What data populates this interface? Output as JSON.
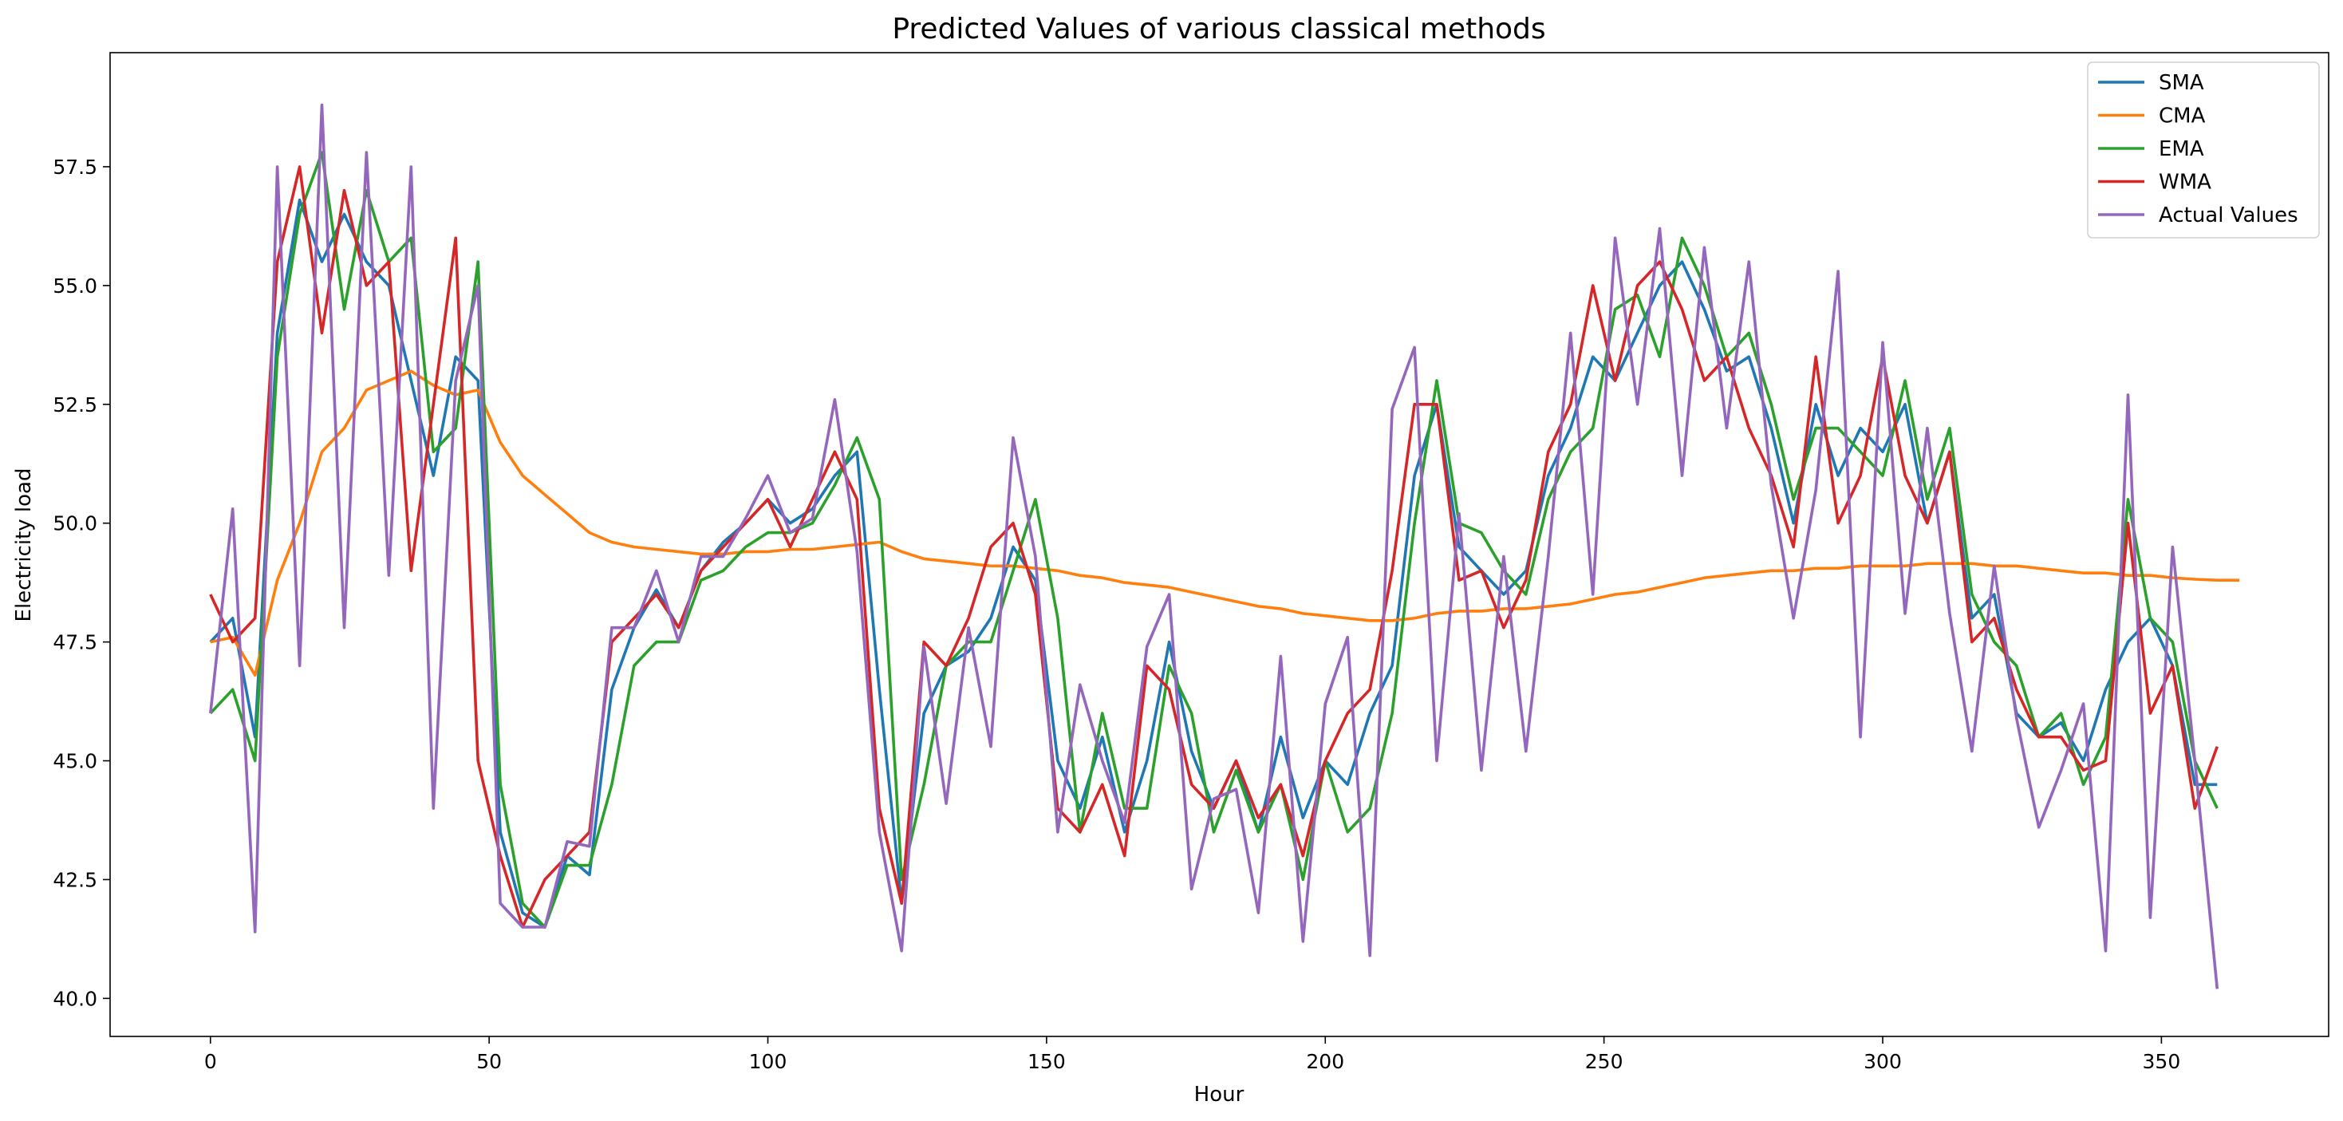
{
  "chart_data": {
    "type": "line",
    "title": "Predicted Values of various classical methods",
    "xlabel": "Hour",
    "ylabel": "Electricity load",
    "xlim": [
      -18,
      380
    ],
    "ylim": [
      39.2,
      59.9
    ],
    "xticks": [
      0,
      50,
      100,
      150,
      200,
      250,
      300,
      350
    ],
    "yticks": [
      40.0,
      42.5,
      45.0,
      47.5,
      50.0,
      52.5,
      55.0,
      57.5
    ],
    "ytick_labels": [
      "40.0",
      "42.5",
      "45.0",
      "47.5",
      "50.0",
      "52.5",
      "55.0",
      "57.5"
    ],
    "grid": false,
    "legend_position": "top-right",
    "sampling_note": "x values at every 4 hours (0..360); CMA last point at 364",
    "x": [
      0,
      4,
      8,
      12,
      16,
      20,
      24,
      28,
      32,
      36,
      40,
      44,
      48,
      52,
      56,
      60,
      64,
      68,
      72,
      76,
      80,
      84,
      88,
      92,
      96,
      100,
      104,
      108,
      112,
      116,
      120,
      124,
      128,
      132,
      136,
      140,
      144,
      148,
      152,
      156,
      160,
      164,
      168,
      172,
      176,
      180,
      184,
      188,
      192,
      196,
      200,
      204,
      208,
      212,
      216,
      220,
      224,
      228,
      232,
      236,
      240,
      244,
      248,
      252,
      256,
      260,
      264,
      268,
      272,
      276,
      280,
      284,
      288,
      292,
      296,
      300,
      304,
      308,
      312,
      316,
      320,
      324,
      328,
      332,
      336,
      340,
      344,
      348,
      352,
      356,
      360
    ],
    "series": [
      {
        "name": "SMA",
        "color": "#1f77b4",
        "values": [
          47.5,
          48.0,
          45.5,
          54.0,
          56.8,
          55.5,
          56.5,
          55.5,
          55.0,
          53.0,
          51.0,
          53.5,
          53.0,
          43.5,
          41.8,
          41.5,
          43.0,
          42.6,
          46.5,
          47.8,
          48.6,
          47.8,
          49.0,
          49.6,
          50.0,
          50.5,
          50.0,
          50.3,
          51.0,
          51.5,
          46.5,
          42.0,
          46.0,
          47.0,
          47.3,
          48.0,
          49.5,
          48.8,
          45.0,
          44.0,
          45.5,
          43.5,
          45.0,
          47.5,
          45.2,
          44.0,
          45.0,
          43.5,
          45.5,
          43.8,
          45.0,
          44.5,
          46.0,
          47.0,
          51.0,
          52.5,
          49.5,
          49.0,
          48.5,
          49.0,
          51.0,
          52.0,
          53.5,
          53.0,
          54.0,
          55.0,
          55.5,
          54.5,
          53.2,
          53.5,
          52.0,
          50.0,
          52.5,
          51.0,
          52.0,
          51.5,
          52.5,
          50.0,
          51.5,
          48.0,
          48.5,
          46.0,
          45.5,
          45.8,
          45.0,
          46.5,
          47.5,
          48.0,
          47.0,
          44.5,
          44.5
        ]
      },
      {
        "name": "CMA",
        "color": "#ff7f0e",
        "values": [
          47.5,
          47.6,
          46.8,
          48.8,
          50.0,
          51.5,
          52.0,
          52.8,
          53.0,
          53.2,
          52.9,
          52.7,
          52.8,
          51.7,
          51.0,
          50.6,
          50.2,
          49.8,
          49.6,
          49.5,
          49.45,
          49.4,
          49.35,
          49.35,
          49.4,
          49.4,
          49.45,
          49.45,
          49.5,
          49.55,
          49.6,
          49.4,
          49.25,
          49.2,
          49.15,
          49.1,
          49.1,
          49.05,
          49.0,
          48.9,
          48.85,
          48.75,
          48.7,
          48.65,
          48.55,
          48.45,
          48.35,
          48.25,
          48.2,
          48.1,
          48.05,
          48.0,
          47.95,
          47.95,
          48.0,
          48.1,
          48.15,
          48.15,
          48.2,
          48.2,
          48.25,
          48.3,
          48.4,
          48.5,
          48.55,
          48.65,
          48.75,
          48.85,
          48.9,
          48.95,
          49.0,
          49.0,
          49.05,
          49.05,
          49.1,
          49.1,
          49.1,
          49.15,
          49.15,
          49.15,
          49.1,
          49.1,
          49.05,
          49.0,
          48.95,
          48.95,
          48.9,
          48.9,
          48.85,
          48.82,
          48.8
        ]
      },
      {
        "name": "EMA",
        "color": "#2ca02c",
        "values": [
          46.0,
          46.5,
          45.0,
          53.5,
          56.5,
          57.8,
          54.5,
          57.0,
          55.5,
          56.0,
          51.5,
          52.0,
          55.5,
          44.5,
          42.0,
          41.5,
          42.8,
          42.8,
          44.5,
          47.0,
          47.5,
          47.5,
          48.8,
          49.0,
          49.5,
          49.8,
          49.8,
          50.0,
          50.8,
          51.8,
          50.5,
          42.5,
          44.5,
          47.0,
          47.5,
          47.5,
          49.0,
          50.5,
          48.0,
          43.5,
          46.0,
          44.0,
          44.0,
          47.0,
          46.0,
          43.5,
          44.8,
          43.5,
          44.5,
          42.5,
          45.0,
          43.5,
          44.0,
          46.0,
          50.0,
          53.0,
          50.0,
          49.8,
          49.0,
          48.5,
          50.5,
          51.5,
          52.0,
          54.5,
          54.8,
          53.5,
          56.0,
          55.0,
          53.5,
          54.0,
          52.5,
          50.5,
          52.0,
          52.0,
          51.5,
          51.0,
          53.0,
          50.5,
          52.0,
          48.5,
          47.5,
          47.0,
          45.5,
          46.0,
          44.5,
          45.5,
          50.5,
          48.0,
          47.5,
          45.0,
          44.0
        ]
      },
      {
        "name": "WMA",
        "color": "#d62728",
        "values": [
          48.5,
          47.5,
          48.0,
          55.5,
          57.5,
          54.0,
          57.0,
          55.0,
          55.5,
          49.0,
          52.5,
          56.0,
          45.0,
          43.0,
          41.5,
          42.5,
          43.0,
          43.5,
          47.5,
          48.0,
          48.5,
          47.8,
          49.0,
          49.5,
          50.0,
          50.5,
          49.5,
          50.5,
          51.5,
          50.5,
          44.0,
          42.0,
          47.5,
          47.0,
          48.0,
          49.5,
          50.0,
          48.5,
          44.0,
          43.5,
          44.5,
          43.0,
          47.0,
          46.5,
          44.5,
          44.0,
          45.0,
          43.8,
          44.5,
          43.0,
          45.0,
          46.0,
          46.5,
          49.0,
          52.5,
          52.5,
          48.8,
          49.0,
          47.8,
          48.8,
          51.5,
          52.5,
          55.0,
          53.0,
          55.0,
          55.5,
          54.5,
          53.0,
          53.5,
          52.0,
          51.0,
          49.5,
          53.5,
          50.0,
          51.0,
          53.5,
          51.0,
          50.0,
          51.5,
          47.5,
          48.0,
          46.5,
          45.5,
          45.5,
          44.8,
          45.0,
          50.0,
          46.0,
          47.0,
          44.0,
          45.3
        ]
      },
      {
        "name": "Actual Values",
        "color": "#9467bd",
        "values": [
          46.0,
          50.3,
          41.4,
          57.5,
          47.0,
          58.8,
          47.8,
          57.8,
          48.9,
          57.5,
          44.0,
          53.0,
          55.0,
          42.0,
          41.5,
          41.5,
          43.3,
          43.2,
          47.8,
          47.8,
          49.0,
          47.5,
          49.3,
          49.3,
          50.1,
          51.0,
          49.8,
          50.1,
          52.6,
          49.4,
          43.5,
          41.0,
          47.4,
          44.1,
          47.8,
          45.3,
          51.8,
          49.3,
          43.5,
          46.6,
          45.0,
          43.7,
          47.4,
          48.5,
          42.3,
          44.2,
          44.4,
          41.8,
          47.2,
          41.2,
          46.2,
          47.6,
          40.9,
          52.4,
          53.7,
          45.0,
          50.2,
          44.8,
          49.3,
          45.2,
          49.3,
          54.0,
          48.5,
          56.0,
          52.5,
          56.2,
          51.0,
          55.8,
          52.0,
          55.5,
          50.8,
          48.0,
          50.7,
          55.3,
          45.5,
          53.8,
          48.1,
          52.0,
          48.1,
          45.2,
          49.1,
          45.9,
          43.6,
          44.8,
          46.2,
          41.0,
          52.7,
          41.7,
          49.5,
          45.0,
          40.2
        ]
      }
    ]
  }
}
